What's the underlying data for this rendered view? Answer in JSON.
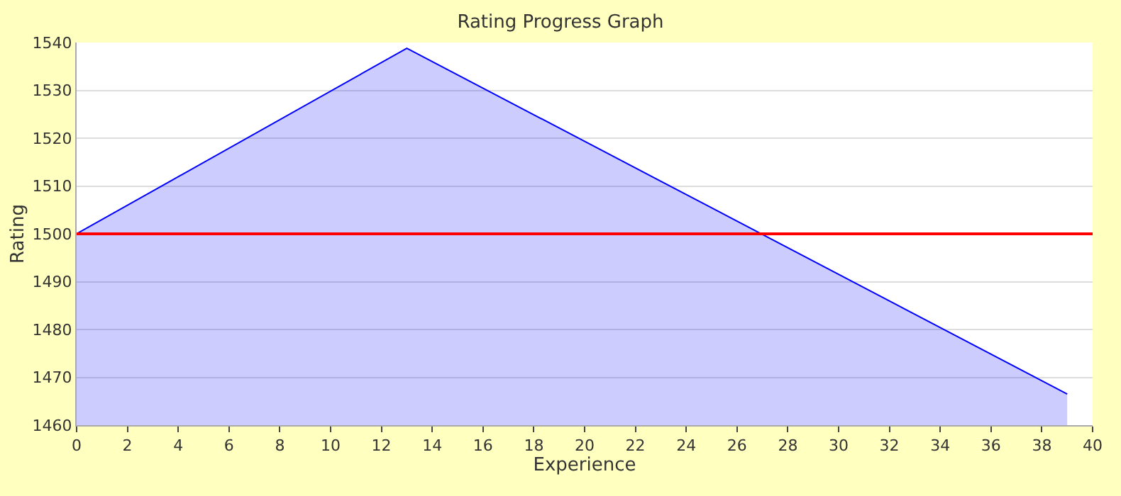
{
  "chart_data": {
    "type": "area",
    "title": "Rating Progress Graph",
    "xlabel": "Experience",
    "ylabel": "Rating",
    "x": [
      0,
      13,
      39
    ],
    "series": [
      {
        "color": "#0000ff",
        "values": [
          1500,
          1538.8,
          1466.5
        ]
      }
    ],
    "xlim": [
      0,
      40
    ],
    "xticks": [
      0,
      2,
      4,
      6,
      8,
      10,
      12,
      14,
      16,
      18,
      20,
      22,
      24,
      26,
      28,
      30,
      32,
      34,
      36,
      38,
      40
    ],
    "ylim": [
      1460,
      1540
    ],
    "yticks": [
      1460,
      1470,
      1480,
      1490,
      1500,
      1510,
      1520,
      1530,
      1540
    ],
    "ref_lines": [
      {
        "axis": "y",
        "value": 1500,
        "color": "#ff0000"
      }
    ],
    "grid": "y",
    "legend": false
  }
}
